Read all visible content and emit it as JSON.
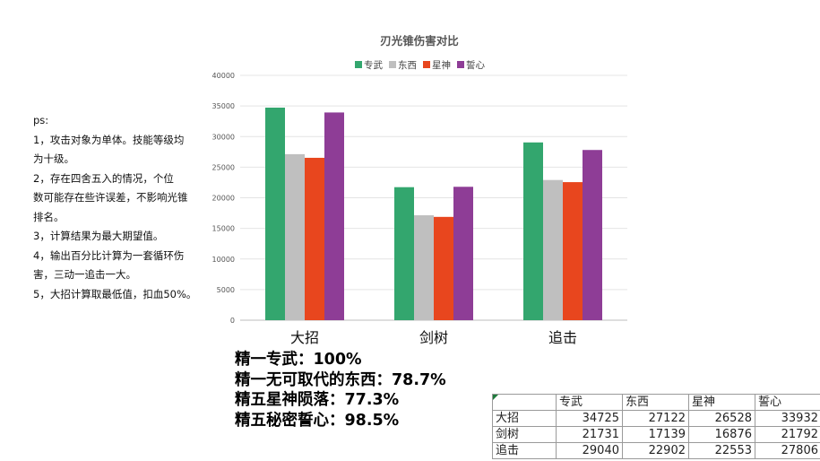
{
  "notes": {
    "title": "ps:",
    "lines": [
      "1，攻击对象为单体。技能等级均",
      "为十级。",
      "2，存在四舍五入的情况，个位",
      "数可能存在些许误差，不影响光锥",
      "排名。",
      "3，计算结果为最大期望值。",
      "4，输出百分比计算为一套循环伤",
      "害，三动一追击一大。",
      "5，大招计算取最低值，扣血50%。"
    ]
  },
  "conclusions": [
    "精一专武：100%",
    "精一无可取代的东西：78.7%",
    "精五星神陨落：77.3%",
    "精五秘密誓心：98.5%"
  ],
  "colors": {
    "series": [
      "#33a66e",
      "#bfbfbf",
      "#e8461e",
      "#8e3d96"
    ]
  },
  "chart_data": {
    "type": "bar",
    "title": "刃光锥伤害对比",
    "categories": [
      "大招",
      "剑树",
      "追击"
    ],
    "series": [
      {
        "name": "专武",
        "values": [
          34725,
          21731,
          29040
        ]
      },
      {
        "name": "东西",
        "values": [
          27122,
          17139,
          22902
        ]
      },
      {
        "name": "星神",
        "values": [
          26528,
          16876,
          22553
        ]
      },
      {
        "name": "誓心",
        "values": [
          33932,
          21792,
          27806
        ]
      }
    ],
    "ylim": [
      0,
      40000
    ],
    "yticks": [
      "0",
      "5000",
      "10000",
      "15000",
      "20000",
      "25000",
      "30000",
      "35000",
      "40000"
    ],
    "grid": true,
    "legend": "top"
  },
  "sheet": {
    "headers": [
      "专武",
      "东西",
      "星神",
      "誓心"
    ],
    "rows": [
      {
        "label": "大招",
        "cells": [
          "34725",
          "27122",
          "26528",
          "33932"
        ]
      },
      {
        "label": "剑树",
        "cells": [
          "21731",
          "17139",
          "16876",
          "21792"
        ]
      },
      {
        "label": "追击",
        "cells": [
          "29040",
          "22902",
          "22553",
          "27806"
        ]
      }
    ]
  }
}
